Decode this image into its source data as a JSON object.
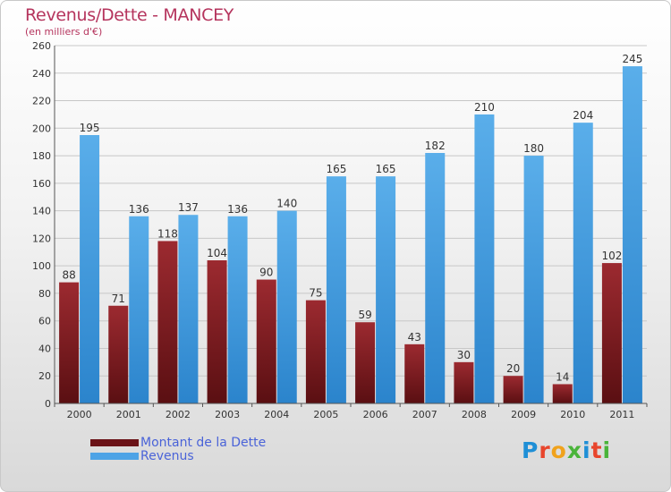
{
  "header": {
    "title": "Revenus/Dette - MANCEY",
    "subtitle": "(en milliers d'€)"
  },
  "legend": [
    {
      "label": "Montant de la Dette",
      "color": "#7a1a1f"
    },
    {
      "label": "Revenus",
      "color": "#4da3e6"
    }
  ],
  "logo": {
    "text": "Proxiti",
    "colors": [
      "#1f8fd6",
      "#e8452c",
      "#f0a21c",
      "#4ab43a",
      "#1f8fd6",
      "#e8452c",
      "#4ab43a"
    ]
  },
  "chart_data": {
    "type": "bar",
    "title": "Revenus/Dette - MANCEY",
    "subtitle": "(en milliers d'€)",
    "categories": [
      "2000",
      "2001",
      "2002",
      "2003",
      "2004",
      "2005",
      "2006",
      "2007",
      "2008",
      "2009",
      "2010",
      "2011"
    ],
    "series": [
      {
        "name": "Montant de la Dette",
        "color": "#7a1a1f",
        "values": [
          88,
          71,
          118,
          104,
          90,
          75,
          59,
          43,
          30,
          20,
          14,
          102
        ]
      },
      {
        "name": "Revenus",
        "color": "#4da3e6",
        "values": [
          195,
          136,
          137,
          136,
          140,
          165,
          165,
          182,
          210,
          180,
          204,
          245
        ]
      }
    ],
    "ylim": [
      0,
      260
    ],
    "yticks": [
      0,
      20,
      40,
      60,
      80,
      100,
      120,
      140,
      160,
      180,
      200,
      220,
      240,
      260
    ],
    "grid": true,
    "legend_position": "bottom-left"
  }
}
